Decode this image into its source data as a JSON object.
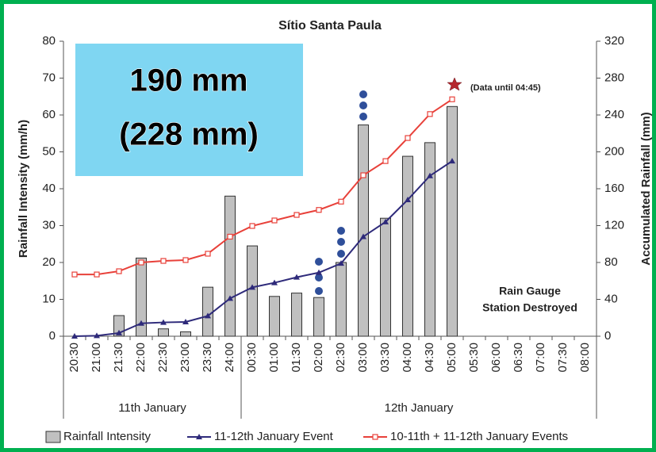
{
  "chart_data": {
    "type": "bar",
    "title": "Sítio Santa Paula",
    "ylabel": "Rainfall Intensity (mm/h)",
    "y2label": "Accumulated Rainfall (mm)",
    "categories": [
      "20:30",
      "21:00",
      "21:30",
      "22:00",
      "22:30",
      "23:00",
      "23:30",
      "24:00",
      "00:30",
      "01:00",
      "01:30",
      "02:00",
      "02:30",
      "03:00",
      "03:30",
      "04:00",
      "04:30",
      "05:00",
      "05:30",
      "06:00",
      "06:30",
      "07:00",
      "07:30",
      "08:00"
    ],
    "groups": [
      {
        "label": "11th January",
        "start": 0,
        "end": 7
      },
      {
        "label": "12th January",
        "start": 8,
        "end": 23
      }
    ],
    "series": [
      {
        "name": "Rainfall Intensity",
        "type": "bar",
        "color": "#c0c0c0",
        "values": [
          0,
          0,
          5.6,
          21.2,
          2,
          1.2,
          13.3,
          38,
          24.5,
          10.8,
          11.7,
          10.5,
          20,
          57.3,
          32,
          48.8,
          52.5,
          62.3,
          null,
          null,
          null,
          null,
          null,
          null
        ]
      },
      {
        "name": "11-12th January Event",
        "type": "line",
        "axis": "y2",
        "color": "#2e2a7a",
        "marker": "triangle",
        "values": [
          0,
          0.5,
          3.5,
          14,
          15,
          15.5,
          22,
          41,
          53,
          58,
          64,
          69,
          79,
          108,
          124,
          148,
          174,
          190,
          null,
          null,
          null,
          null,
          null,
          null
        ]
      },
      {
        "name": "10-11th + 11-12th January Events",
        "type": "line",
        "axis": "y2",
        "color": "#e8413a",
        "marker": "square",
        "values": [
          67,
          67,
          70.5,
          80,
          81.7,
          82.6,
          89.5,
          108,
          119.6,
          125.6,
          131.6,
          137,
          146,
          174.6,
          190,
          215,
          241,
          257,
          null,
          null,
          null,
          null,
          null,
          null
        ]
      }
    ],
    "ylim": [
      0,
      80
    ],
    "yticks": [
      0,
      10,
      20,
      30,
      40,
      50,
      60,
      70,
      80
    ],
    "y2lim": [
      0,
      320
    ],
    "y2ticks": [
      0,
      40,
      80,
      120,
      160,
      200,
      240,
      280,
      320
    ],
    "callout": [
      "190 mm",
      "(228 mm)"
    ],
    "note": "(Data until 04:45)",
    "station_note": [
      "Rain Gauge",
      "Station Destroyed"
    ]
  }
}
